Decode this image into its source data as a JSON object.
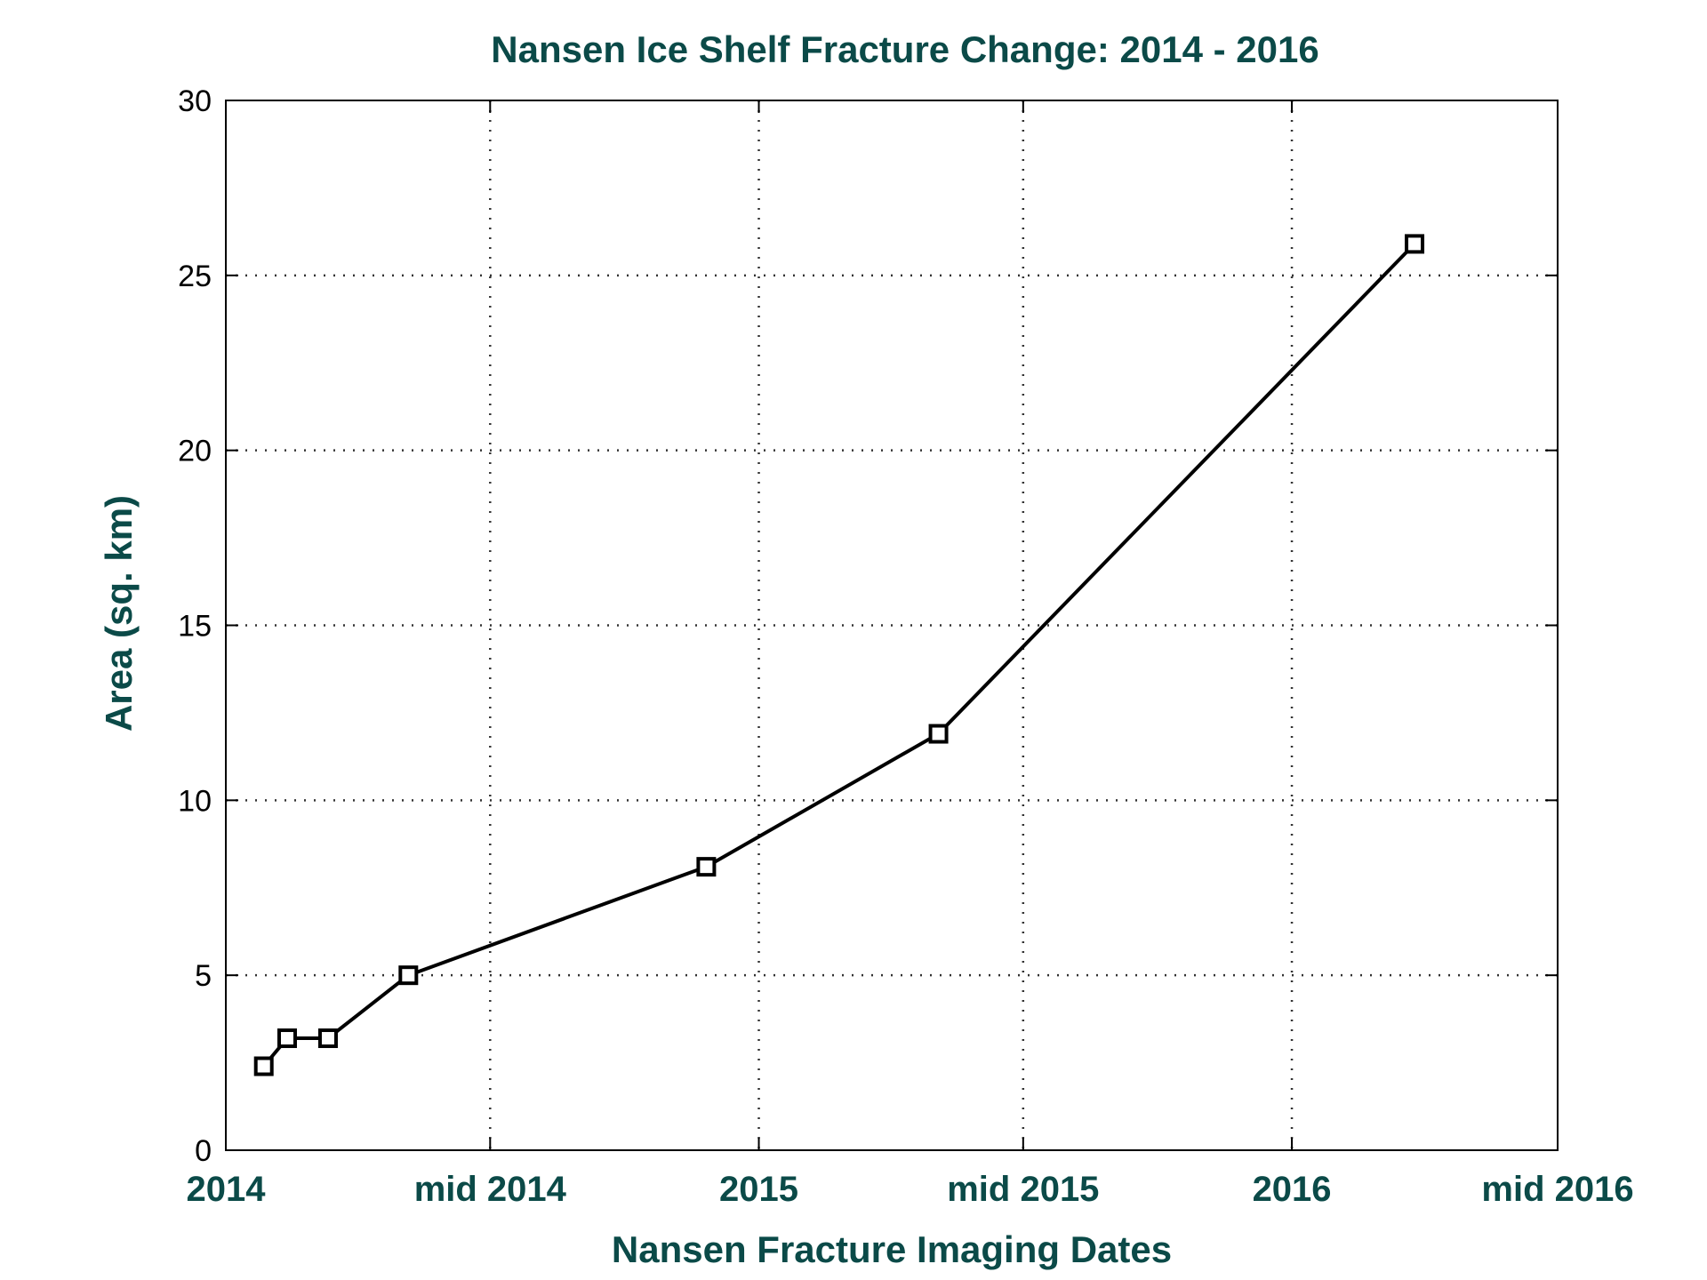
{
  "chart_data": {
    "type": "line",
    "title": "Nansen Ice Shelf Fracture Change: 2014 - 2016",
    "xlabel": "Nansen Fracture Imaging Dates",
    "ylabel": "Area (sq. km)",
    "xlim": [
      "2014-01-01",
      "2016-07-01"
    ],
    "ylim": [
      0,
      30
    ],
    "x_ticks": [
      {
        "date": "2014-01-01",
        "label": "2014"
      },
      {
        "date": "2014-07-01",
        "label": "mid 2014"
      },
      {
        "date": "2015-01-01",
        "label": "2015"
      },
      {
        "date": "2015-07-01",
        "label": "mid 2015"
      },
      {
        "date": "2016-01-01",
        "label": "2016"
      },
      {
        "date": "2016-07-01",
        "label": "mid 2016"
      }
    ],
    "y_ticks": [
      0,
      5,
      10,
      15,
      20,
      25,
      30
    ],
    "grid": true,
    "marker": "square",
    "series": [
      {
        "points": [
          {
            "x": "2014-01-27",
            "y": 2.4
          },
          {
            "x": "2014-02-12",
            "y": 3.2
          },
          {
            "x": "2014-03-12",
            "y": 3.2
          },
          {
            "x": "2014-05-06",
            "y": 5.0
          },
          {
            "x": "2014-11-26",
            "y": 8.1
          },
          {
            "x": "2015-05-04",
            "y": 11.9
          },
          {
            "x": "2016-03-25",
            "y": 25.9
          }
        ]
      }
    ],
    "colors": {
      "text": "#0b4a48",
      "line": "#000000",
      "grid": "#333333",
      "tick_label": "#000000"
    }
  }
}
